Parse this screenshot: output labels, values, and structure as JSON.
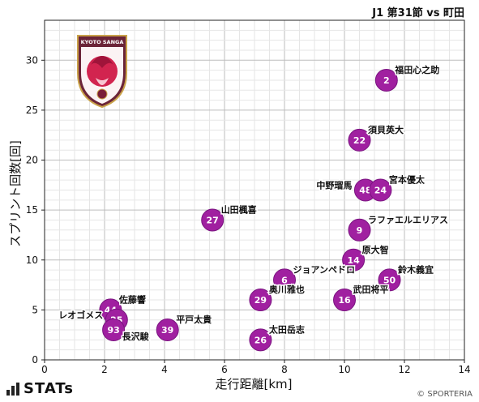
{
  "header": {
    "title": "J1 第31節 vs 町田"
  },
  "footer": {
    "brand": "STATs",
    "copyright": "© SPORTERIA"
  },
  "logo": {
    "name": "KYOTO SANGA",
    "text": "KYOTO SANGA"
  },
  "colors": {
    "point_fill": "#a020a0",
    "point_stroke": "#7a1480",
    "grid": "#d0d0d0"
  },
  "chart_data": {
    "type": "scatter",
    "xlabel": "走行距離[km]",
    "ylabel": "スプリント回数[回]",
    "xlim": [
      0,
      14
    ],
    "ylim": [
      0,
      34
    ],
    "xticks": [
      0,
      2,
      4,
      6,
      8,
      10,
      12,
      14
    ],
    "yticks": [
      0,
      5,
      10,
      15,
      20,
      25,
      30
    ],
    "grid": true,
    "points": [
      {
        "number": "2",
        "name": "福田心之助",
        "x": 11.4,
        "y": 28,
        "label_side": "right"
      },
      {
        "number": "22",
        "name": "須貝英大",
        "x": 10.5,
        "y": 22,
        "label_side": "right"
      },
      {
        "number": "48",
        "name": "中野瑠馬",
        "x": 10.7,
        "y": 17,
        "label_side": "left"
      },
      {
        "number": "24",
        "name": "宮本優太",
        "x": 11.2,
        "y": 17,
        "label_side": "right"
      },
      {
        "number": "27",
        "name": "山田楓喜",
        "x": 5.6,
        "y": 14,
        "label_side": "right"
      },
      {
        "number": "9",
        "name": "ラファエルエリアス",
        "x": 10.5,
        "y": 13,
        "label_side": "right"
      },
      {
        "number": "14",
        "name": "原大智",
        "x": 10.3,
        "y": 10,
        "label_side": "right"
      },
      {
        "number": "50",
        "name": "鈴木義宜",
        "x": 11.5,
        "y": 8,
        "label_side": "right"
      },
      {
        "number": "6",
        "name": "ジョアンペドロ",
        "x": 8.0,
        "y": 8,
        "label_side": "right"
      },
      {
        "number": "29",
        "name": "奥川雅也",
        "x": 7.2,
        "y": 6,
        "label_side": "right"
      },
      {
        "number": "16",
        "name": "武田将平",
        "x": 10.0,
        "y": 6,
        "label_side": "right"
      },
      {
        "number": "44",
        "name": "佐藤響",
        "x": 2.2,
        "y": 5,
        "label_side": "right"
      },
      {
        "number": "25",
        "name": "レオゴメス",
        "x": 2.4,
        "y": 4,
        "label_side": "left"
      },
      {
        "number": "93",
        "name": "長沢駿",
        "x": 2.3,
        "y": 3,
        "label_side": "right-below"
      },
      {
        "number": "39",
        "name": "平戸太貴",
        "x": 4.1,
        "y": 3,
        "label_side": "right"
      },
      {
        "number": "26",
        "name": "太田岳志",
        "x": 7.2,
        "y": 2,
        "label_side": "right"
      }
    ]
  }
}
